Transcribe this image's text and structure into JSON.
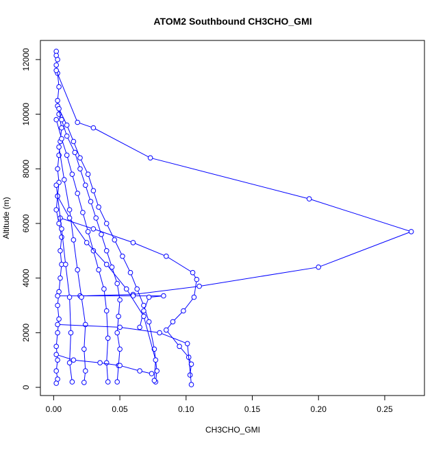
{
  "chart_data": {
    "type": "scatter",
    "title": "ATOM2 Southbound CH3CHO_GMI",
    "xlabel": "CH3CHO_GMI",
    "ylabel": "Altitude (m)",
    "xlim": [
      -0.01,
      0.28
    ],
    "ylim": [
      -300,
      12700
    ],
    "x_ticks": [
      0.0,
      0.05,
      0.1,
      0.15,
      0.2,
      0.25
    ],
    "x_tick_labels": [
      "0.00",
      "0.05",
      "0.10",
      "0.15",
      "0.20",
      "0.25"
    ],
    "y_ticks": [
      0,
      2000,
      4000,
      6000,
      8000,
      10000,
      12000
    ],
    "y_tick_labels": [
      "0",
      "2000",
      "4000",
      "6000",
      "8000",
      "10000",
      "12000"
    ],
    "grid": false,
    "marker": "open-circle",
    "connected": true,
    "color": "#0000FF",
    "series": [
      {
        "x": [
          0.002,
          0.002,
          0.003,
          0.002,
          0.003,
          0.004,
          0.003,
          0.004,
          0.006,
          0.005,
          0.004,
          0.003,
          0.004,
          0.003,
          0.002,
          0.004,
          0.006,
          0.005,
          0.006,
          0.005,
          0.004,
          0.003,
          0.004,
          0.003,
          0.002,
          0.003,
          0.002,
          0.003,
          0.002
        ],
        "y": [
          12300,
          12150,
          12000,
          11800,
          11500,
          11000,
          10500,
          10000,
          9500,
          9000,
          8500,
          8000,
          7500,
          7000,
          6500,
          6000,
          5500,
          5000,
          4500,
          4000,
          3500,
          3000,
          2500,
          2000,
          1500,
          1000,
          600,
          300,
          150
        ]
      },
      {
        "x": [
          0.003,
          0.006,
          0.01,
          0.016,
          0.02,
          0.024,
          0.028,
          0.032,
          0.036,
          0.04,
          0.044,
          0.048,
          0.05,
          0.049,
          0.048,
          0.05,
          0.049,
          0.048
        ],
        "y": [
          10300,
          9800,
          9200,
          8600,
          8000,
          7400,
          6800,
          6200,
          5600,
          5000,
          4400,
          3800,
          3200,
          2600,
          2000,
          1400,
          800,
          200
        ]
      },
      {
        "x": [
          0.004,
          0.01,
          0.015,
          0.02,
          0.026,
          0.03,
          0.034,
          0.04,
          0.046,
          0.052,
          0.058,
          0.063,
          0.068,
          0.072,
          0.076,
          0.078,
          0.077
        ],
        "y": [
          10200,
          9600,
          9000,
          8400,
          7800,
          7200,
          6600,
          6000,
          5400,
          4800,
          4200,
          3600,
          3000,
          2400,
          1400,
          600,
          200
        ]
      },
      {
        "x": [
          0.002,
          0.018,
          0.03,
          0.073,
          0.193,
          0.27,
          0.2,
          0.11,
          0.06,
          0.02
        ],
        "y": [
          11600,
          9700,
          9500,
          8400,
          6900,
          5700,
          4400,
          3700,
          3400,
          3350
        ]
      },
      {
        "x": [
          0.005,
          0.03,
          0.06,
          0.085,
          0.105,
          0.108,
          0.106,
          0.098,
          0.09,
          0.085,
          0.095,
          0.102,
          0.104,
          0.103
        ],
        "y": [
          6200,
          5800,
          5300,
          4800,
          4200,
          3950,
          3300,
          2800,
          2400,
          2100,
          1500,
          1100,
          850,
          450
        ]
      },
      {
        "x": [
          0.003,
          0.06,
          0.083,
          0.072,
          0.068,
          0.065
        ],
        "y": [
          3350,
          3350,
          3350,
          3300,
          2800,
          2200
        ]
      },
      {
        "x": [
          0.002,
          0.006,
          0.01,
          0.014,
          0.018,
          0.022,
          0.026,
          0.03,
          0.034,
          0.038,
          0.04,
          0.041,
          0.04,
          0.041
        ],
        "y": [
          9800,
          9100,
          8500,
          7800,
          7100,
          6400,
          5700,
          5000,
          4300,
          3600,
          2800,
          1800,
          900,
          200
        ]
      },
      {
        "x": [
          0.004,
          0.008,
          0.012,
          0.015,
          0.018,
          0.021,
          0.024,
          0.023,
          0.024,
          0.023
        ],
        "y": [
          8800,
          7600,
          6500,
          5400,
          4300,
          3300,
          2300,
          1400,
          600,
          180
        ]
      },
      {
        "x": [
          0.003,
          0.012,
          0.025,
          0.04,
          0.055,
          0.068,
          0.077,
          0.076
        ],
        "y": [
          7000,
          6200,
          5300,
          4500,
          3600,
          2600,
          1000,
          250
        ]
      },
      {
        "x": [
          0.002,
          0.006,
          0.009,
          0.012,
          0.013,
          0.012,
          0.014
        ],
        "y": [
          7400,
          5800,
          4500,
          3300,
          2000,
          900,
          200
        ]
      },
      {
        "x": [
          0.003,
          0.05,
          0.08,
          0.101,
          0.104
        ],
        "y": [
          2300,
          2200,
          2000,
          1600,
          100
        ]
      },
      {
        "x": [
          0.002,
          0.015,
          0.035,
          0.05,
          0.065,
          0.074
        ],
        "y": [
          1200,
          1000,
          900,
          800,
          600,
          500
        ]
      }
    ]
  }
}
